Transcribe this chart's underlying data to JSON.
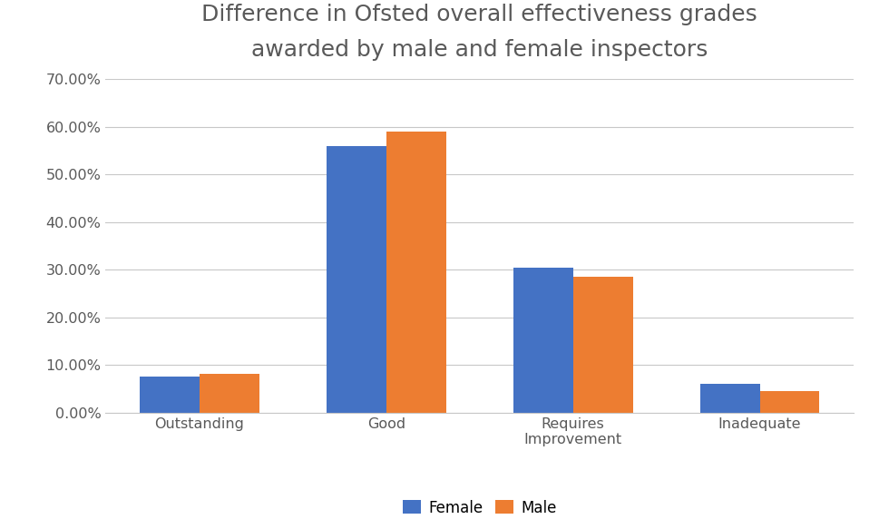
{
  "title": "Difference in Ofsted overall effectiveness grades\nawarded by male and female inspectors",
  "categories": [
    "Outstanding",
    "Good",
    "Requires\nImprovement",
    "Inadequate"
  ],
  "female_values": [
    0.075,
    0.56,
    0.305,
    0.06
  ],
  "male_values": [
    0.082,
    0.59,
    0.285,
    0.045
  ],
  "female_color": "#4472C4",
  "male_color": "#ED7D31",
  "ylim": [
    0,
    0.7
  ],
  "yticks": [
    0.0,
    0.1,
    0.2,
    0.3,
    0.4,
    0.5,
    0.6,
    0.7
  ],
  "ytick_labels": [
    "0.00%",
    "10.00%",
    "20.00%",
    "30.00%",
    "40.00%",
    "50.00%",
    "60.00%",
    "70.00%"
  ],
  "legend_labels": [
    "Female",
    "Male"
  ],
  "bar_width": 0.32,
  "background_color": "#ffffff",
  "title_color": "#595959",
  "title_fontsize": 18,
  "tick_fontsize": 11.5,
  "legend_fontsize": 12,
  "grid_color": "#c8c8c8"
}
